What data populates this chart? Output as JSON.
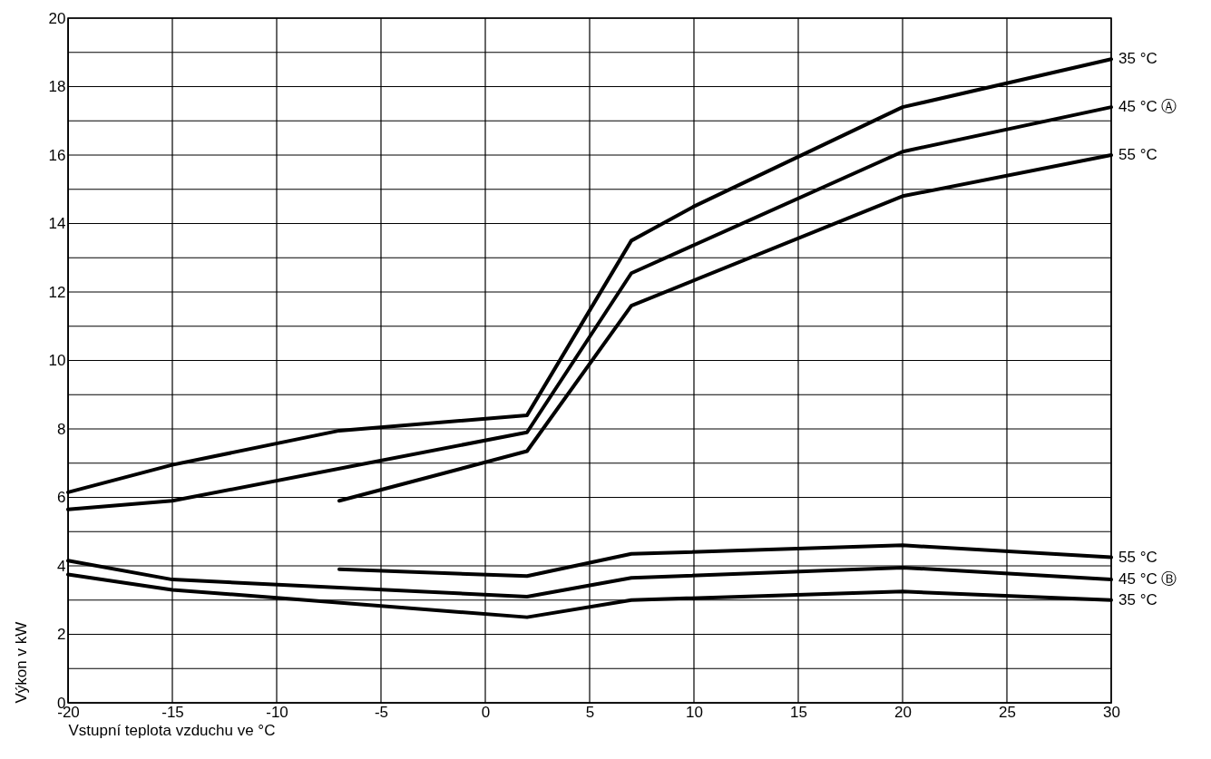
{
  "chart_data": {
    "type": "line",
    "xlabel": "Vstupní teplota vzduchu ve °C",
    "ylabel": "Výkon v kW",
    "xlim": [
      -20,
      30
    ],
    "xticks": [
      -20,
      -15,
      -10,
      -5,
      0,
      5,
      10,
      15,
      20,
      25,
      30
    ],
    "ylim": [
      0,
      20
    ],
    "yticks": [
      0,
      {
        "value": 1,
        "label": null
      },
      2,
      {
        "value": 3,
        "label": null
      },
      4,
      {
        "value": 5,
        "label": null
      },
      6,
      {
        "value": 7,
        "label": null
      },
      8,
      {
        "value": 9,
        "label": null
      },
      10,
      {
        "value": 11,
        "label": null
      },
      12,
      {
        "value": 13,
        "label": null
      },
      14,
      {
        "value": 15,
        "label": null
      },
      16,
      {
        "value": 17,
        "label": null
      },
      18,
      {
        "value": 19,
        "label": null
      },
      20
    ],
    "grid": true,
    "marker": "none",
    "line_style": "solid",
    "series": [
      {
        "name": "35 °C",
        "color": "#000000",
        "x": [
          -20,
          -15,
          -7,
          2,
          7,
          10,
          20,
          30
        ],
        "values": [
          6.15,
          6.95,
          7.95,
          8.4,
          13.5,
          14.5,
          17.4,
          18.8
        ]
      },
      {
        "name": "45 °C Ⓐ",
        "color": "#000000",
        "x": [
          -20,
          -15,
          2,
          7,
          20,
          30
        ],
        "values": [
          5.65,
          5.9,
          7.9,
          12.55,
          16.1,
          17.4
        ]
      },
      {
        "name": "55 °C",
        "color": "#000000",
        "x": [
          -7,
          2,
          7,
          20,
          30
        ],
        "values": [
          5.9,
          7.35,
          11.6,
          14.8,
          16.0
        ]
      },
      {
        "name": "55 °C",
        "color": "#000000",
        "x": [
          -7,
          2,
          7,
          20,
          30
        ],
        "values": [
          3.9,
          3.7,
          4.35,
          4.6,
          4.25
        ]
      },
      {
        "name": "45 °C Ⓑ",
        "color": "#000000",
        "x": [
          -20,
          -15,
          2,
          7,
          20,
          30
        ],
        "values": [
          4.15,
          3.6,
          3.1,
          3.65,
          3.95,
          3.6
        ]
      },
      {
        "name": "35 °C",
        "color": "#000000",
        "x": [
          -20,
          -15,
          2,
          7,
          20,
          30
        ],
        "values": [
          3.75,
          3.3,
          2.5,
          3.0,
          3.25,
          3.0
        ]
      }
    ]
  }
}
